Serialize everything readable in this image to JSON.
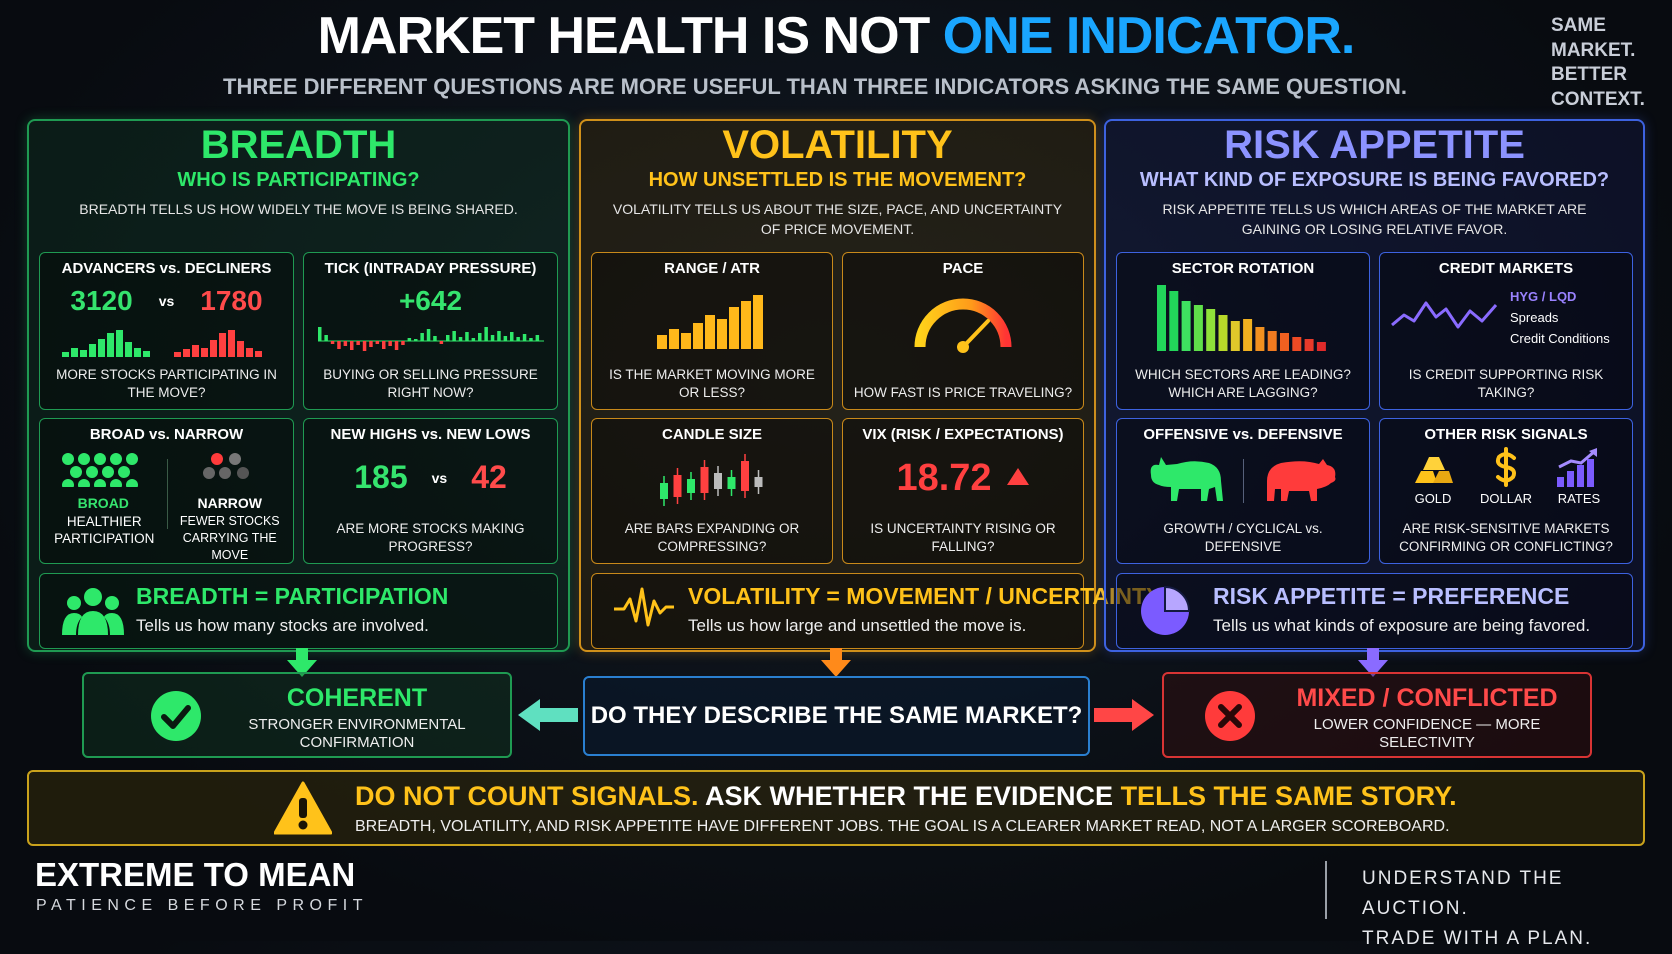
{
  "header": {
    "title": "MARKET HEALTH IS NOT",
    "title_highlight": "ONE INDICATOR.",
    "subtitle": "THREE DIFFERENT QUESTIONS ARE MORE USEFUL THAN THREE INDICATORS ASKING THE SAME QUESTION.",
    "tagline": [
      "SAME",
      "MARKET.",
      "BETTER",
      "CONTEXT."
    ]
  },
  "panels": [
    {
      "title": "BREADTH",
      "question": "WHO IS PARTICIPATING?",
      "description": "BREADTH TELLS US HOW WIDELY THE MOVE IS BEING SHARED.",
      "cards": [
        {
          "title": "ADVANCERS vs. DECLINERS",
          "values": [
            "3120",
            "vs",
            "1780"
          ],
          "caption": "MORE STOCKS PARTICIPATING IN THE MOVE?"
        },
        {
          "title": "TICK (INTRADAY PRESSURE)",
          "values": [
            "+642"
          ],
          "caption": "BUYING OR SELLING PRESSURE RIGHT NOW?"
        },
        {
          "title": "BROAD vs. NARROW",
          "labels": [
            "BROAD",
            "HEALTHIER PARTICIPATION",
            "NARROW",
            "FEWER STOCKS CARRYING THE MOVE"
          ]
        },
        {
          "title": "NEW HIGHS vs. NEW LOWS",
          "values": [
            "185",
            "vs",
            "42"
          ],
          "caption": "ARE MORE STOCKS MAKING PROGRESS?"
        }
      ],
      "summary": {
        "title": "BREADTH = PARTICIPATION",
        "text": "Tells us how many stocks are involved."
      }
    },
    {
      "title": "VOLATILITY",
      "question": "HOW UNSETTLED IS THE MOVEMENT?",
      "description": "VOLATILITY TELLS US ABOUT THE SIZE, PACE, AND UNCERTAINTY OF PRICE MOVEMENT.",
      "cards": [
        {
          "title": "RANGE / ATR",
          "caption": "IS THE MARKET MOVING MORE OR LESS?"
        },
        {
          "title": "PACE",
          "caption": "HOW FAST IS PRICE TRAVELING?"
        },
        {
          "title": "CANDLE SIZE",
          "caption": "ARE BARS EXPANDING OR COMPRESSING?"
        },
        {
          "title": "VIX (RISK / EXPECTATIONS)",
          "values": [
            "18.72"
          ],
          "caption": "IS UNCERTAINTY RISING OR FALLING?"
        }
      ],
      "summary": {
        "title": "VOLATILITY = MOVEMENT / UNCERTAINTY",
        "text": "Tells us how large and unsettled the move is."
      }
    },
    {
      "title": "RISK APPETITE",
      "question": "WHAT KIND OF EXPOSURE IS BEING FAVORED?",
      "description": "RISK APPETITE TELLS US WHICH AREAS OF THE MARKET ARE GAINING OR LOSING RELATIVE FAVOR.",
      "cards": [
        {
          "title": "SECTOR ROTATION",
          "caption": "WHICH SECTORS ARE LEADING? WHICH ARE LAGGING?"
        },
        {
          "title": "CREDIT MARKETS",
          "labels": [
            "HYG / LQD",
            "Spreads",
            "Credit Conditions"
          ],
          "caption": "IS CREDIT SUPPORTING RISK TAKING?"
        },
        {
          "title": "OFFENSIVE vs. DEFENSIVE",
          "caption": "GROWTH / CYCLICAL vs. DEFENSIVE"
        },
        {
          "title": "OTHER RISK SIGNALS",
          "labels": [
            "GOLD",
            "DOLLAR",
            "RATES"
          ],
          "caption": "ARE RISK-SENSITIVE MARKETS CONFIRMING OR CONFLICTING?"
        }
      ],
      "summary": {
        "title": "RISK APPETITE = PREFERENCE",
        "text": "Tells us what kinds of exposure are being favored."
      }
    }
  ],
  "outcomes": {
    "coherent": {
      "title": "COHERENT",
      "text": "STRONGER ENVIRONMENTAL CONFIRMATION"
    },
    "question": "DO THEY DESCRIBE THE SAME MARKET?",
    "conflicted": {
      "title": "MIXED / CONFLICTED",
      "text": "LOWER CONFIDENCE — MORE SELECTIVITY"
    }
  },
  "warning": {
    "lead": "DO NOT COUNT SIGNALS.",
    "middle": "ASK WHETHER THE EVIDENCE",
    "end": "TELLS THE SAME STORY.",
    "text": "BREADTH, VOLATILITY, AND RISK APPETITE HAVE DIFFERENT JOBS. THE GOAL IS A CLEARER MARKET READ, NOT A LARGER SCOREBOARD."
  },
  "footer": {
    "brand": "EXTREME TO MEAN",
    "slogan": "PATIENCE BEFORE PROFIT",
    "motto": [
      "UNDERSTAND THE AUCTION.",
      "TRADE WITH A PLAN."
    ]
  }
}
